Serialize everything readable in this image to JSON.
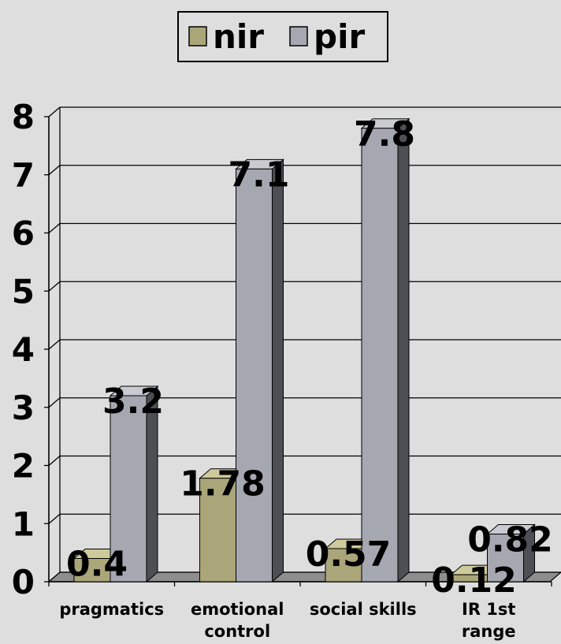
{
  "chart_data": {
    "type": "bar",
    "style": "3d-clustered-column",
    "categories": [
      [
        "pragmatics"
      ],
      [
        "emotional",
        "control"
      ],
      [
        "social skills"
      ],
      [
        "IR 1st",
        "range"
      ]
    ],
    "series": [
      {
        "name": "nir",
        "values": [
          0.4,
          1.78,
          0.57,
          0.12
        ],
        "labels": [
          "0.4",
          "1.78",
          "0.57",
          "0.12"
        ],
        "color": "#aba67a",
        "top_color": "#cfca9c",
        "side_color": "#6f6b48"
      },
      {
        "name": "pir",
        "values": [
          3.2,
          7.1,
          7.8,
          0.82
        ],
        "labels": [
          "3.2",
          "7.1",
          "7.8",
          "0.82"
        ],
        "color": "#a5a7b1",
        "top_color": "#c9cad2",
        "side_color": "#4e4f55"
      }
    ],
    "ylim": [
      0,
      8
    ],
    "yticks": [
      "0",
      "1",
      "2",
      "3",
      "4",
      "5",
      "6",
      "7",
      "8"
    ],
    "grid": true,
    "legend": "top-center",
    "colors": {
      "background": "#dedede",
      "floor": "#8e8e8e",
      "wall": "#dedede"
    }
  }
}
